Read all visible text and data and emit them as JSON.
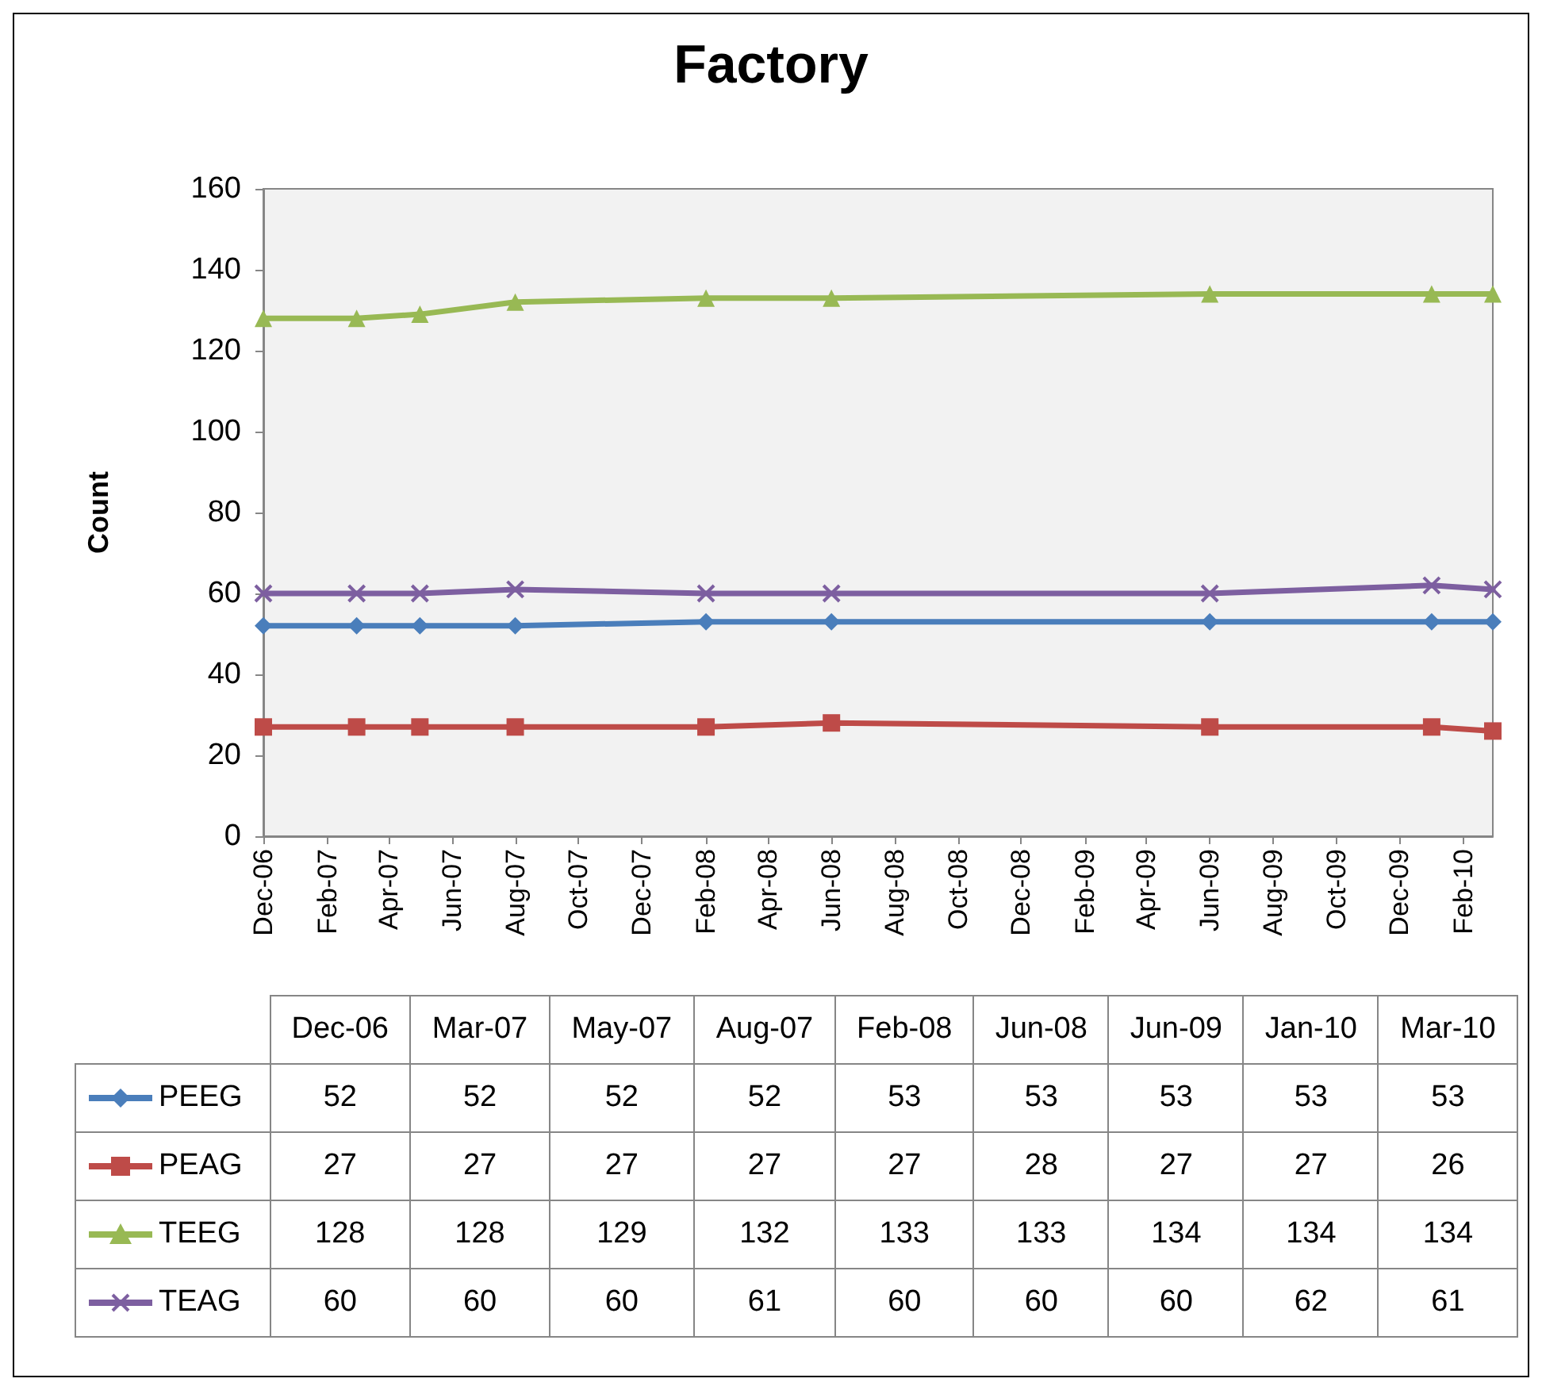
{
  "chart_data": [
    {
      "type": "line",
      "title": "Factory",
      "ylabel": "Count",
      "x": [
        "2006-12",
        "2007-03",
        "2007-05",
        "2007-08",
        "2008-02",
        "2008-06",
        "2009-06",
        "2010-01",
        "2010-03"
      ],
      "series": [
        {
          "color": "#4a7ebb",
          "marker": "diamond",
          "values": [
            52,
            52,
            52,
            52,
            53,
            53,
            53,
            53,
            53
          ]
        },
        {
          "color": "#be4b48",
          "marker": "square",
          "values": [
            27,
            27,
            27,
            27,
            27,
            28,
            27,
            27,
            26
          ]
        },
        {
          "color": "#98b954",
          "marker": "triangle",
          "values": [
            128,
            128,
            129,
            132,
            133,
            133,
            134,
            134,
            134
          ]
        },
        {
          "color": "#7d5fa0",
          "marker": "cross",
          "values": [
            60,
            60,
            60,
            61,
            60,
            60,
            60,
            62,
            61
          ]
        }
      ],
      "xlim": [
        "2006-12",
        "2010-03"
      ],
      "xticks": [
        {
          "value": "2006-12",
          "label": "Dec-06"
        },
        {
          "value": "2007-02",
          "label": "Feb-07"
        },
        {
          "value": "2007-04",
          "label": "Apr-07"
        },
        {
          "value": "2007-06",
          "label": "Jun-07"
        },
        {
          "value": "2007-08",
          "label": "Aug-07"
        },
        {
          "value": "2007-10",
          "label": "Oct-07"
        },
        {
          "value": "2007-12",
          "label": "Dec-07"
        },
        {
          "value": "2008-02",
          "label": "Feb-08"
        },
        {
          "value": "2008-04",
          "label": "Apr-08"
        },
        {
          "value": "2008-06",
          "label": "Jun-08"
        },
        {
          "value": "2008-08",
          "label": "Aug-08"
        },
        {
          "value": "2008-10",
          "label": "Oct-08"
        },
        {
          "value": "2008-12",
          "label": "Dec-08"
        },
        {
          "value": "2009-02",
          "label": "Feb-09"
        },
        {
          "value": "2009-04",
          "label": "Apr-09"
        },
        {
          "value": "2009-06",
          "label": "Jun-09"
        },
        {
          "value": "2009-08",
          "label": "Aug-09"
        },
        {
          "value": "2009-10",
          "label": "Oct-09"
        },
        {
          "value": "2009-12",
          "label": "Dec-09"
        },
        {
          "value": "2010-02",
          "label": "Feb-10"
        }
      ],
      "ylim": [
        0,
        160
      ],
      "yticks": [
        0,
        20,
        40,
        60,
        80,
        100,
        120,
        140,
        160
      ],
      "grid": false
    },
    {
      "type": "other",
      "data_labels": true,
      "categories": [
        "Dec-06",
        "Mar-07",
        "May-07",
        "Aug-07",
        "Feb-08",
        "Jun-08",
        "Jun-09",
        "Jan-10",
        "Mar-10"
      ],
      "series": [
        {
          "name": "PEEG",
          "color": "#4a7ebb",
          "marker": "diamond",
          "values": [
            52,
            52,
            52,
            52,
            53,
            53,
            53,
            53,
            53
          ]
        },
        {
          "name": "PEAG",
          "color": "#be4b48",
          "marker": "square",
          "values": [
            27,
            27,
            27,
            27,
            27,
            28,
            27,
            27,
            26
          ]
        },
        {
          "name": "TEEG",
          "color": "#98b954",
          "marker": "triangle",
          "values": [
            128,
            128,
            129,
            132,
            133,
            133,
            134,
            134,
            134
          ]
        },
        {
          "name": "TEAG",
          "color": "#7d5fa0",
          "marker": "cross",
          "values": [
            60,
            60,
            60,
            61,
            60,
            60,
            60,
            62,
            61
          ]
        }
      ]
    }
  ]
}
